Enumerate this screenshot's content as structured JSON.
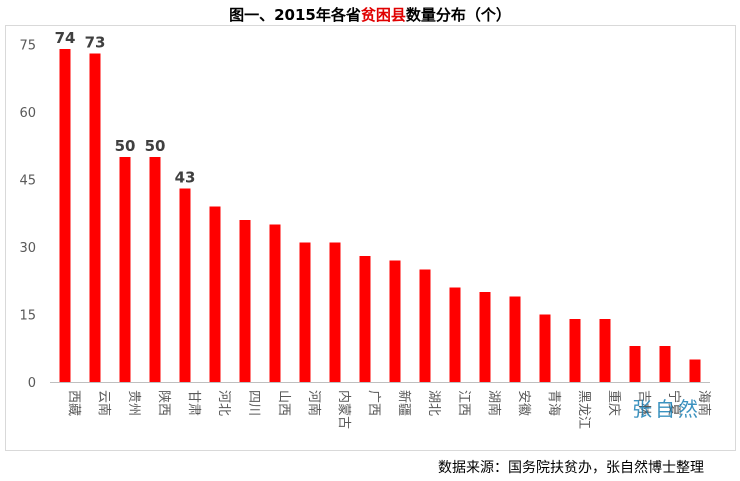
{
  "title": {
    "prefix": "图一、2015年各省",
    "highlight": "贫困县",
    "suffix": "数量分布（个）"
  },
  "source": "数据来源：国务院扶贫办，张自然博士整理",
  "watermark": "张自然",
  "colors": {
    "bar": "#ff0000",
    "axis": "#bfbfbf",
    "tick_text": "#595959",
    "label_text": "#404040"
  },
  "chart_data": {
    "type": "bar",
    "title": "图一、2015年各省贫困县数量分布（个）",
    "categories": [
      "西藏",
      "云南",
      "贵州",
      "陕西",
      "甘肃",
      "河北",
      "四川",
      "山西",
      "河南",
      "内蒙古",
      "广西",
      "新疆",
      "湖北",
      "江西",
      "湖南",
      "安徽",
      "青海",
      "黑龙江",
      "重庆",
      "吉林",
      "宁夏",
      "海南"
    ],
    "values": [
      74,
      73,
      50,
      50,
      43,
      39,
      36,
      35,
      31,
      31,
      28,
      27,
      25,
      21,
      20,
      19,
      15,
      14,
      14,
      8,
      8,
      5
    ],
    "data_labels": [
      "74",
      "73",
      "50",
      "50",
      "43",
      "",
      "",
      "",
      "",
      "",
      "",
      "",
      "",
      "",
      "",
      "",
      "",
      "",
      "",
      "",
      "",
      ""
    ],
    "yticks": [
      0,
      15,
      30,
      45,
      60,
      75
    ],
    "ylim": [
      0,
      78
    ],
    "xlabel": "",
    "ylabel": "",
    "grid": false,
    "legend": "none"
  }
}
